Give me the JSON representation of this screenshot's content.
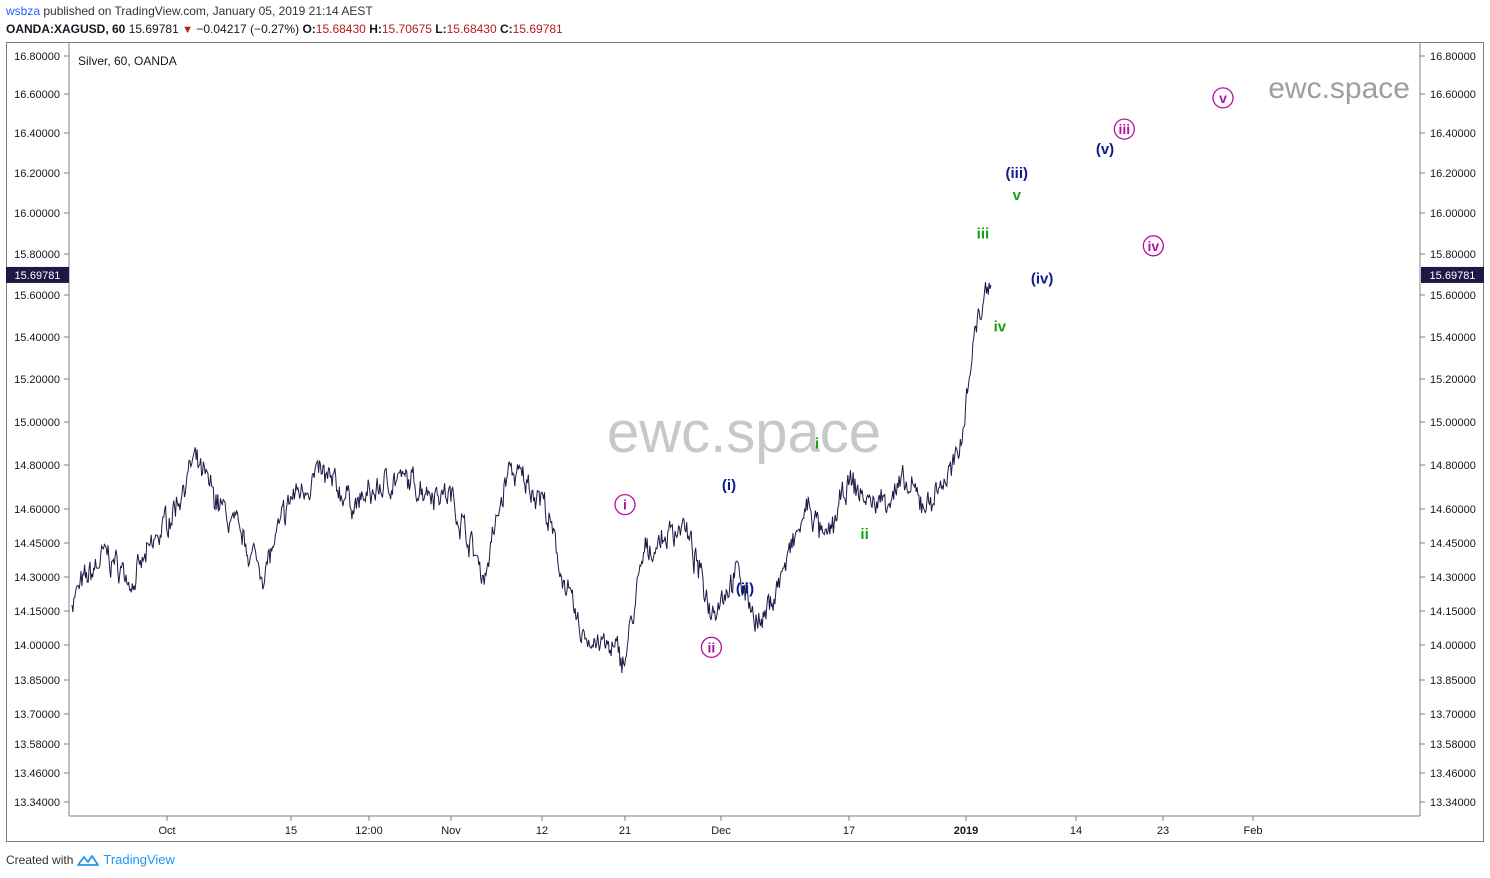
{
  "header": {
    "user": "wsbza",
    "published_text": "published on TradingView.com, January 05, 2019 21:14 AEST",
    "symbol": "OANDA:XAGUSD, 60",
    "last": "15.69781",
    "change_arrow_icon": "down-triangle-icon",
    "change": "−0.04217 (−0.27%)",
    "o_label": "O:",
    "o_value": "15.68430",
    "h_label": "H:",
    "h_value": "15.70675",
    "l_label": "L:",
    "l_value": "15.68430",
    "c_label": "C:",
    "c_value": "15.69781"
  },
  "footer": {
    "created_with": "Created with",
    "brand": "TradingView",
    "logo_icon": "tradingview-logo-icon"
  },
  "colors": {
    "price_line": "#1c1a45",
    "wave_magenta": "#b3109d",
    "wave_navy": "#0d1a8c",
    "wave_green": "#13a113",
    "watermark": "#c8c8c8"
  },
  "chart_data": {
    "type": "line",
    "title": "Silver, 60, OANDA",
    "watermark_center": "ewc.space",
    "watermark_corner": "ewc.space",
    "current_price_label": "15.69781",
    "y_ticks": [
      "16.80000",
      "16.60000",
      "16.40000",
      "16.20000",
      "16.00000",
      "15.80000",
      "15.60000",
      "15.40000",
      "15.20000",
      "15.00000",
      "14.80000",
      "14.60000",
      "14.45000",
      "14.30000",
      "14.15000",
      "14.00000",
      "13.85000",
      "13.70000",
      "13.58000",
      "13.46000",
      "13.34000"
    ],
    "ylim": [
      13.3,
      16.85
    ],
    "x_ticks": [
      "Oct",
      "15",
      "12:00",
      "Nov",
      "12",
      "21",
      "Dec",
      "17",
      "2019",
      "14",
      "23",
      "Feb"
    ],
    "x_ticks_bold": [
      "2019"
    ],
    "x_dates": [
      "2018-09-14",
      "2018-09-20",
      "2018-09-25",
      "2018-10-02",
      "2018-10-04",
      "2018-10-08",
      "2018-10-12",
      "2018-10-15",
      "2018-10-18",
      "2018-10-22",
      "2018-10-26",
      "2018-11-01",
      "2018-11-05",
      "2018-11-08",
      "2018-11-12",
      "2018-11-14",
      "2018-11-16",
      "2018-11-21",
      "2018-11-23",
      "2018-11-27",
      "2018-11-30",
      "2018-12-03",
      "2018-12-06",
      "2018-12-12",
      "2018-12-14",
      "2018-12-17",
      "2018-12-20",
      "2018-12-24",
      "2018-12-27",
      "2018-12-31",
      "2019-01-02",
      "2019-01-04"
    ],
    "series": [
      {
        "values": [
          14.2,
          14.4,
          14.28,
          14.62,
          14.82,
          14.55,
          14.32,
          14.65,
          14.76,
          14.62,
          14.74,
          14.66,
          14.3,
          14.78,
          14.66,
          14.34,
          14.06,
          13.94,
          14.4,
          14.54,
          14.16,
          14.32,
          14.08,
          14.62,
          14.44,
          14.72,
          14.62,
          14.7,
          14.62,
          14.82,
          15.42,
          15.7
        ]
      }
    ],
    "wave_labels": [
      {
        "text": "i",
        "style": "circled",
        "color": "magenta",
        "date": "2018-11-21",
        "price": 14.62
      },
      {
        "text": "ii",
        "style": "circled",
        "color": "magenta",
        "date": "2018-11-30",
        "price": 13.99
      },
      {
        "text": "iii",
        "style": "circled",
        "color": "magenta",
        "date": "2019-01-19",
        "price": 16.42
      },
      {
        "text": "iv",
        "style": "circled",
        "color": "magenta",
        "date": "2019-01-22",
        "price": 15.84
      },
      {
        "text": "v",
        "style": "circled",
        "color": "magenta",
        "date": "2019-01-29",
        "price": 16.58
      },
      {
        "text": "(i)",
        "style": "paren",
        "color": "navy",
        "date": "2018-12-02",
        "price": 14.71
      },
      {
        "text": "(ii)",
        "style": "paren",
        "color": "navy",
        "date": "2018-12-04",
        "price": 14.25
      },
      {
        "text": "(iii)",
        "style": "paren",
        "color": "navy",
        "date": "2019-01-07",
        "price": 16.2
      },
      {
        "text": "(iv)",
        "style": "paren",
        "color": "navy",
        "date": "2019-01-10",
        "price": 15.68
      },
      {
        "text": "(v)",
        "style": "paren",
        "color": "navy",
        "date": "2019-01-17",
        "price": 16.32
      },
      {
        "text": "i",
        "style": "plain",
        "color": "green",
        "date": "2018-12-13",
        "price": 14.9
      },
      {
        "text": "ii",
        "style": "plain",
        "color": "green",
        "date": "2018-12-19",
        "price": 14.49
      },
      {
        "text": "iii",
        "style": "plain",
        "color": "green",
        "date": "2019-01-03",
        "price": 15.9
      },
      {
        "text": "iv",
        "style": "plain",
        "color": "green",
        "date": "2019-01-05",
        "price": 15.45
      },
      {
        "text": "v",
        "style": "plain",
        "color": "green",
        "date": "2019-01-07",
        "price": 16.09
      }
    ],
    "grid": false,
    "legend": "none",
    "price_scale": "both sides"
  }
}
